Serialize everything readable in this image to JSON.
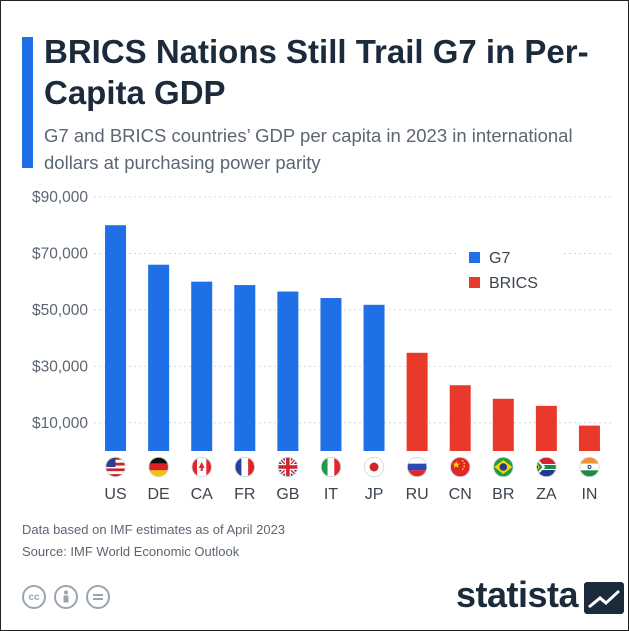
{
  "title": "BRICS Nations Still Trail G7 in Per-Capita GDP",
  "subtitle": "G7 and BRICS countries’ GDP per capita in 2023 in international dollars at purchasing power parity",
  "footer": {
    "note": "Data based on IMF estimates as of April 2023",
    "source": "Source: IMF World Economic Outlook",
    "brand": "statista"
  },
  "colors": {
    "g7": "#1f6fe6",
    "brics": "#e8392a",
    "accent": "#1f6fe6",
    "text": "#1c2b3c",
    "muted": "#5b6672",
    "grid": "#d4d9de"
  },
  "icons": [
    "cc-icon",
    "attribution-icon",
    "no-derivatives-icon",
    "statista-logo-icon"
  ],
  "chart_data": {
    "type": "bar",
    "categories": [
      "US",
      "DE",
      "CA",
      "FR",
      "GB",
      "IT",
      "JP",
      "RU",
      "CN",
      "BR",
      "ZA",
      "IN"
    ],
    "group": [
      "G7",
      "G7",
      "G7",
      "G7",
      "G7",
      "G7",
      "G7",
      "BRICS",
      "BRICS",
      "BRICS",
      "BRICS",
      "BRICS"
    ],
    "values": [
      80000,
      66000,
      60000,
      58800,
      56500,
      54200,
      51800,
      34800,
      23300,
      18500,
      16000,
      9000
    ],
    "yticks": [
      10000,
      30000,
      50000,
      70000,
      90000
    ],
    "ytick_labels": [
      "$10,000",
      "$30,000",
      "$50,000",
      "$70,000",
      "$90,000"
    ],
    "ylim": [
      0,
      90000
    ],
    "legend": [
      "G7",
      "BRICS"
    ],
    "legend_position": "top-right",
    "grid": true,
    "flags": [
      "us",
      "de",
      "ca",
      "fr",
      "gb",
      "it",
      "jp",
      "ru",
      "cn",
      "br",
      "za",
      "in"
    ]
  }
}
